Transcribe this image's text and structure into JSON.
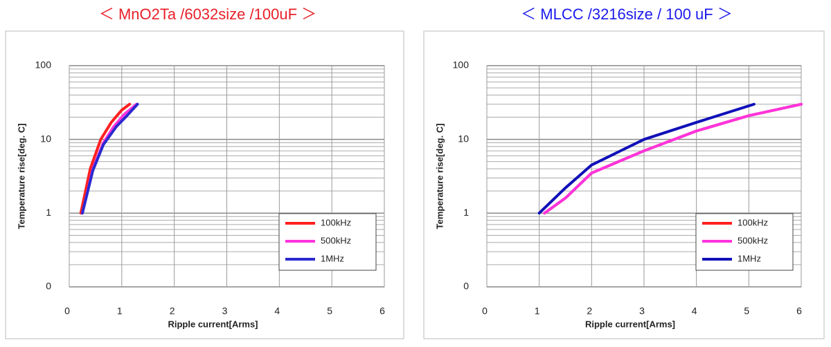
{
  "chart_data": [
    {
      "type": "line",
      "title": "＜ MnO2Ta /6032size /100uF ＞",
      "title_color": "#e8202a",
      "xlabel": "Ripple current[Arms]",
      "ylabel": "Temperature rise[deg. C]",
      "xlim": [
        0,
        6
      ],
      "xticks": [
        0,
        1,
        2,
        3,
        4,
        5,
        6
      ],
      "ylim": [
        0.1,
        100
      ],
      "yscale": "log",
      "yticks": [
        {
          "value": 0.1,
          "label": "0"
        },
        1,
        10,
        100
      ],
      "yminorticks": [
        0.2,
        0.3,
        0.4,
        0.5,
        0.6,
        0.7,
        0.8,
        0.9,
        2,
        3,
        4,
        5,
        6,
        7,
        8,
        9,
        20,
        30,
        40,
        50,
        60,
        70,
        80,
        90
      ],
      "grid": true,
      "series": [
        {
          "name": "100kHz",
          "color": "#ff2020",
          "x": [
            0.22,
            0.4,
            0.6,
            0.8,
            1.0,
            1.15
          ],
          "values": [
            1,
            4,
            10,
            17,
            25,
            30
          ]
        },
        {
          "name": "500kHz",
          "color": "#ff33dd",
          "x": [
            0.25,
            0.45,
            0.65,
            0.85,
            1.05,
            1.28
          ],
          "values": [
            1,
            4,
            9,
            15,
            22,
            30
          ]
        },
        {
          "name": "1MHz",
          "color": "#2a2ad0",
          "x": [
            0.25,
            0.45,
            0.65,
            0.9,
            1.1,
            1.3
          ],
          "values": [
            1,
            3.8,
            8.5,
            15,
            21,
            30
          ]
        }
      ]
    },
    {
      "type": "line",
      "title": "＜ MLCC /3216size / 100 uF ＞",
      "title_color": "#1a1aee",
      "xlabel": "Ripple current[Arms]",
      "ylabel": "Temperature rise[deg. C]",
      "xlim": [
        0,
        6
      ],
      "xticks": [
        0,
        1,
        2,
        3,
        4,
        5,
        6
      ],
      "ylim": [
        0.1,
        100
      ],
      "yscale": "log",
      "yticks": [
        {
          "value": 0.1,
          "label": "0"
        },
        1,
        10,
        100
      ],
      "yminorticks": [
        0.2,
        0.3,
        0.4,
        0.5,
        0.6,
        0.7,
        0.8,
        0.9,
        2,
        3,
        4,
        5,
        6,
        7,
        8,
        9,
        20,
        30,
        40,
        50,
        60,
        70,
        80,
        90
      ],
      "grid": true,
      "series": [
        {
          "name": "100kHz",
          "color": "#ff2020",
          "x": [
            1.1,
            1.5,
            2,
            3,
            4,
            5,
            6
          ],
          "values": [
            1,
            1.6,
            3.5,
            7,
            13,
            21,
            30
          ]
        },
        {
          "name": "500kHz",
          "color": "#ff33dd",
          "x": [
            1.1,
            1.5,
            2,
            3,
            4,
            5,
            6
          ],
          "values": [
            1,
            1.6,
            3.5,
            7,
            13,
            21,
            30
          ]
        },
        {
          "name": "1MHz",
          "color": "#1010b8",
          "x": [
            1,
            1.5,
            2,
            3,
            4,
            5.1
          ],
          "values": [
            1,
            2.2,
            4.5,
            10,
            17,
            30
          ]
        }
      ]
    }
  ]
}
